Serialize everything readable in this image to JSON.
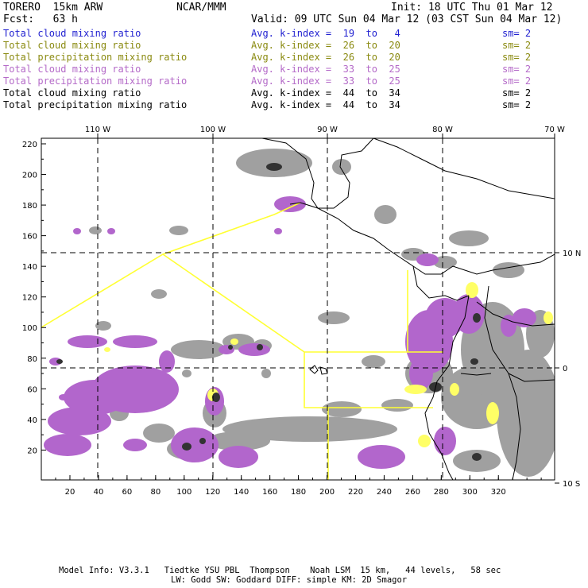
{
  "header": {
    "model": "TORERO  15km ARW",
    "center": "NCAR/MMM",
    "init": "Init: 18 UTC Thu 01 Mar 12",
    "fcst": "Fcst:   63 h",
    "valid": "Valid: 09 UTC Sun 04 Mar 12 (03 CST Sun 04 Mar 12)"
  },
  "legend": [
    {
      "field": "Total cloud mixing ratio",
      "kindex": "Avg. k-index =  19  to   4",
      "sm": "sm= 2",
      "color": "#1f1fd0"
    },
    {
      "field": "Total cloud mixing ratio",
      "kindex": "Avg. k-index =  26  to  20",
      "sm": "sm= 2",
      "color": "#8a8a10"
    },
    {
      "field": "Total precipitation mixing ratio",
      "kindex": "Avg. k-index =  26  to  20",
      "sm": "sm= 2",
      "color": "#8a8a10"
    },
    {
      "field": "Total cloud mixing ratio",
      "kindex": "Avg. k-index =  33  to  25",
      "sm": "sm= 2",
      "color": "#b46ac8"
    },
    {
      "field": "Total precipitation mixing ratio",
      "kindex": "Avg. k-index =  33  to  25",
      "sm": "sm= 2",
      "color": "#b46ac8"
    },
    {
      "field": "Total cloud mixing ratio",
      "kindex": "Avg. k-index =  44  to  34",
      "sm": "sm= 2",
      "color": "#000000"
    },
    {
      "field": "Total precipitation mixing ratio",
      "kindex": "Avg. k-index =  44  to  34",
      "sm": "sm= 2",
      "color": "#000000"
    }
  ],
  "map": {
    "lon_labels": [
      "110 W",
      "100 W",
      "90 W",
      "80 W",
      "70 W"
    ],
    "lat_labels": [
      "10 N",
      "0",
      "10 S"
    ],
    "y_ticks": [
      "220",
      "200",
      "180",
      "160",
      "140",
      "120",
      "100",
      "80",
      "60",
      "40",
      "20"
    ],
    "x_ticks": [
      "20",
      "40",
      "60",
      "80",
      "100",
      "120",
      "140",
      "160",
      "180",
      "200",
      "220",
      "240",
      "260",
      "280",
      "300",
      "320"
    ],
    "colors": {
      "grid": "#000000",
      "coast": "#000000",
      "domain_box": "#ffff33",
      "gray_cloud": "#9a9a9a",
      "dark_cloud": "#3a3a3a",
      "purple_precip": "#b266cc",
      "yellow_precip": "#ffff66"
    }
  },
  "footer": {
    "line1": "Model Info: V3.3.1   Tiedtke YSU PBL  Thompson    Noah LSM  15 km,   44 levels,   58 sec",
    "line2": "LW: Godd SW: Goddard DIFF: simple KM: 2D Smagor"
  }
}
